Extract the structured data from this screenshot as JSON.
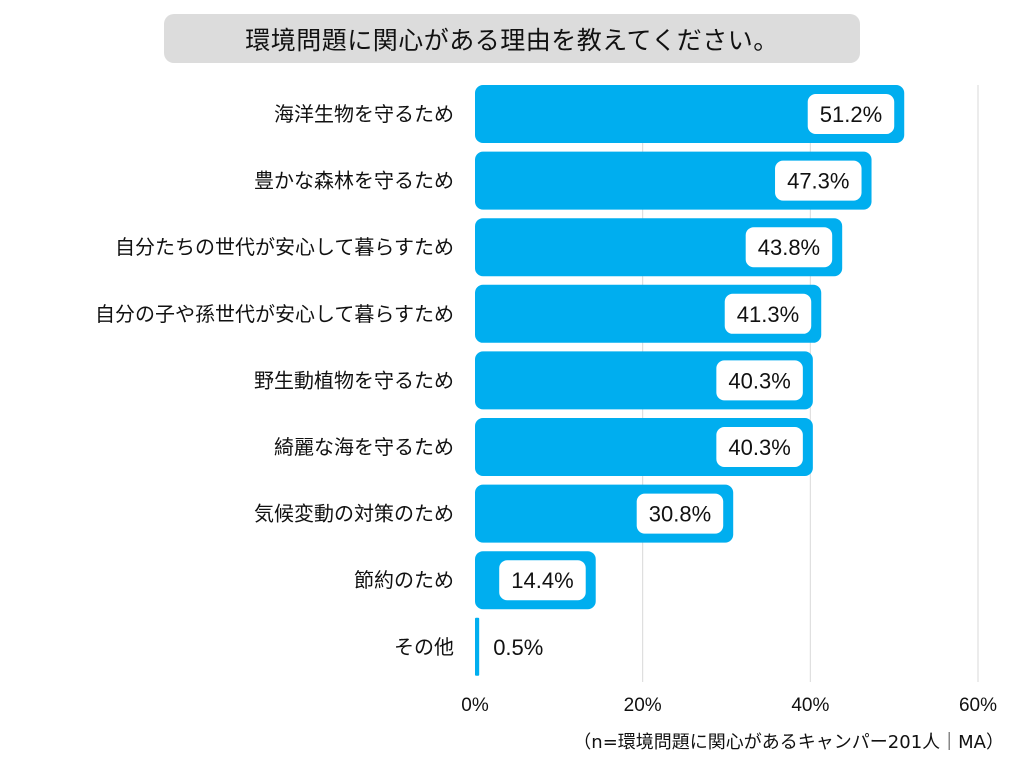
{
  "chart_data": {
    "type": "bar",
    "orientation": "horizontal",
    "title": "環境問題に関心がある理由を教えてください。",
    "categories": [
      "海洋生物を守るため",
      "豊かな森林を守るため",
      "自分たちの世代が安心して暮らすため",
      "自分の子や孫世代が安心して暮らすため",
      "野生動植物を守るため",
      "綺麗な海を守るため",
      "気候変動の対策のため",
      "節約のため",
      "その他"
    ],
    "values": [
      51.2,
      47.3,
      43.8,
      41.3,
      40.3,
      40.3,
      30.8,
      14.4,
      0.5
    ],
    "value_labels": [
      "51.2%",
      "47.3%",
      "43.8%",
      "41.3%",
      "40.3%",
      "40.3%",
      "30.8%",
      "14.4%",
      "0.5%"
    ],
    "xlim": [
      0,
      60
    ],
    "xticks": [
      0,
      20,
      40,
      60
    ],
    "xtick_labels": [
      "0%",
      "20%",
      "40%",
      "60%"
    ],
    "grid": true,
    "bar_color": "#00aeef",
    "note": "（n=環境問題に関心があるキャンパー201人｜MA）"
  }
}
